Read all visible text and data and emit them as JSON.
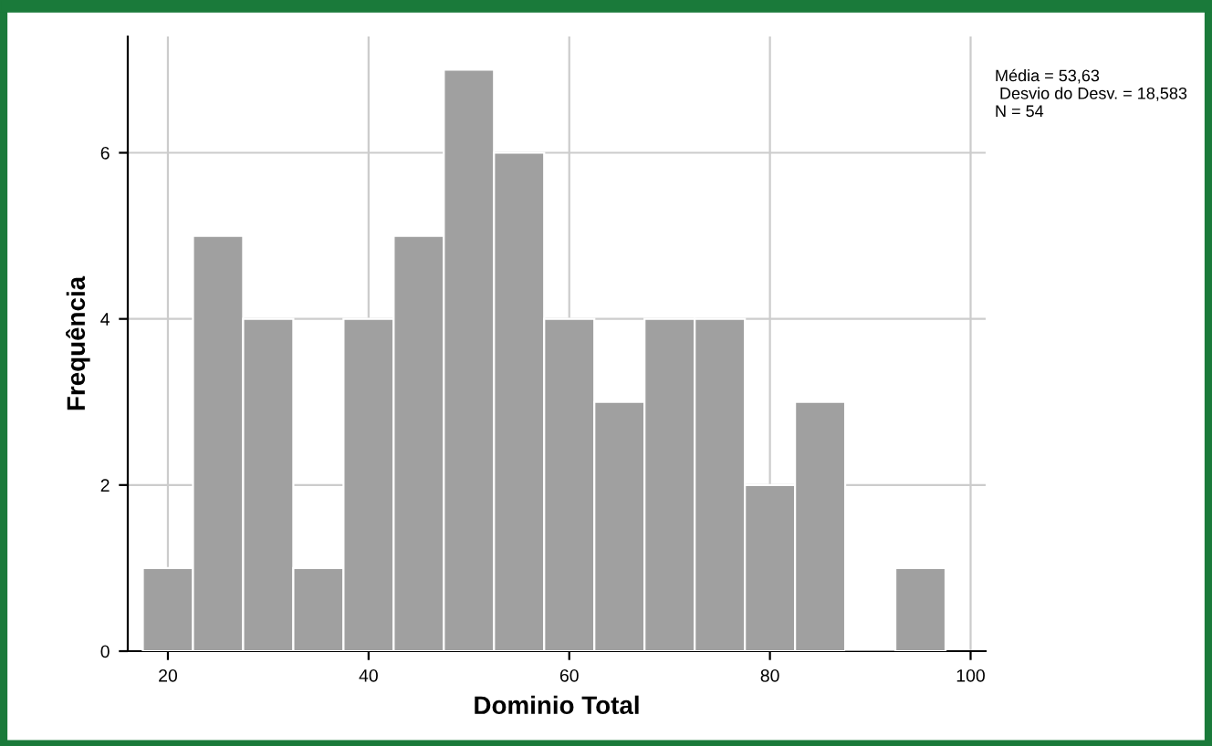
{
  "chart_data": {
    "type": "histogram",
    "xlabel": "Dominio Total",
    "ylabel": "Frequência",
    "bins": [
      17.5,
      22.5,
      27.5,
      32.5,
      37.5,
      42.5,
      47.5,
      52.5,
      57.5,
      62.5,
      67.5,
      72.5,
      77.5,
      82.5,
      87.5,
      92.5,
      97.5
    ],
    "values": [
      1,
      5,
      4,
      1,
      4,
      5,
      7,
      6,
      4,
      3,
      4,
      4,
      2,
      3,
      0,
      1
    ],
    "color": "#a0a0a0",
    "xlim": [
      16,
      101.5
    ],
    "xticks": [
      20,
      40,
      60,
      80,
      100
    ],
    "ylim": [
      0,
      7.4
    ],
    "yticks": [
      0,
      2,
      4,
      6
    ],
    "grid": true,
    "annotations": [
      "Média = 53,63\n Desvio do Desv. = 18,583\nN = 54"
    ]
  }
}
